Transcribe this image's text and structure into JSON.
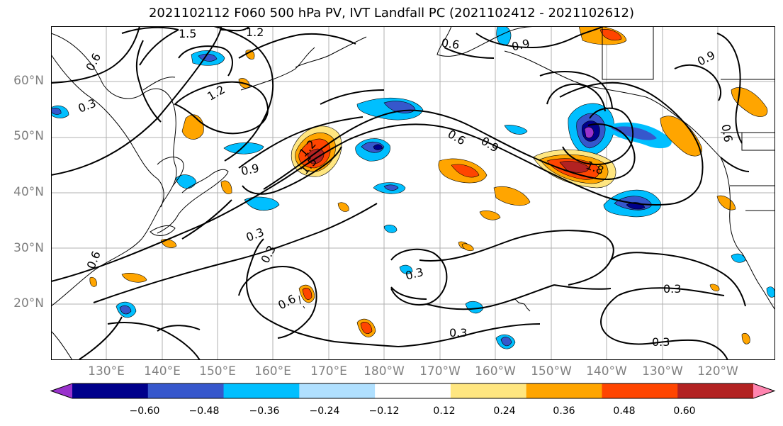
{
  "title": "2021102112 F060 500 hPa PV, IVT Landfall PC (2021102412 - 2021102612)",
  "lat_labels": [
    "60°N",
    "50°N",
    "40°N",
    "30°N",
    "20°N"
  ],
  "lon_labels": [
    "130°E",
    "140°E",
    "150°E",
    "160°E",
    "170°E",
    "180°W",
    "170°W",
    "160°W",
    "150°W",
    "140°W",
    "130°W",
    "120°W"
  ],
  "colorbar": {
    "ticks": [
      "−0.60",
      "−0.48",
      "−0.36",
      "−0.24",
      "−0.12",
      "0.12",
      "0.24",
      "0.36",
      "0.48",
      "0.60"
    ],
    "colors": [
      "#9932cc",
      "#00008b",
      "#3657cc",
      "#00bfff",
      "#b0e0ff",
      "#ffffff",
      "#ffe680",
      "#ffa500",
      "#ff4500",
      "#b22222",
      "#ff85b0"
    ]
  },
  "contour_labels": [
    "1.5",
    "1.2",
    "0.6",
    "0.9",
    "0.9",
    "0.6",
    "0.3",
    "1.2",
    "0.6",
    "0.9",
    "1.8",
    "0.9",
    "1.2",
    "1.5",
    "0.6",
    "0.3",
    "0.3",
    "0.3",
    "0.6",
    "0.3",
    "0.3",
    "0.3",
    "0.6"
  ]
}
